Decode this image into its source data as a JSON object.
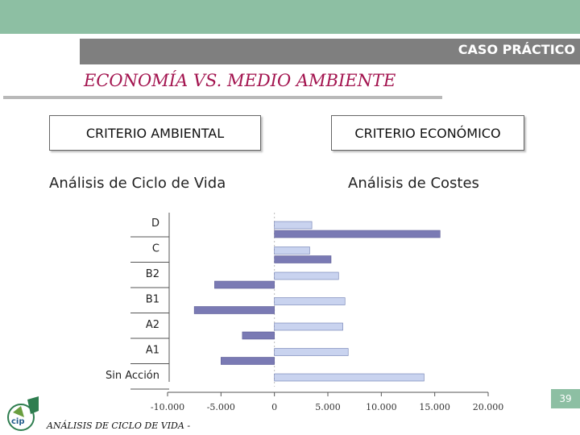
{
  "header": {
    "section": "CASO PRÁCTICO",
    "title": "ECONOMÍA VS. MEDIO AMBIENTE"
  },
  "criteria": {
    "left": {
      "label": "CRITERIO AMBIENTAL",
      "method": "Análisis de Ciclo de Vida"
    },
    "right": {
      "label": "CRITERIO ECONÓMICO",
      "method": "Análisis de Costes"
    }
  },
  "chart_data": {
    "type": "bar",
    "orientation": "horizontal",
    "categories": [
      "D",
      "C",
      "B2",
      "B1",
      "A2",
      "A1",
      "Sin Acción"
    ],
    "series": [
      {
        "values": [
          3500,
          3300,
          6000,
          6600,
          6400,
          6900,
          14000
        ],
        "color": "#c9d3ef"
      },
      {
        "values": [
          15500,
          5300,
          -5600,
          -7500,
          -3000,
          -5000,
          null
        ],
        "color": "#7a7ab4"
      }
    ],
    "xlim": [
      -10000,
      20000
    ],
    "xticks": [
      "-10.000",
      "-5.000",
      "0",
      "5.000",
      "10.000",
      "15.000",
      "20.000"
    ],
    "grid": false
  },
  "page": {
    "number": "39"
  },
  "footer": {
    "text": "ANÁLISIS DE CICLO DE VIDA -"
  },
  "colors": {
    "accent": "#8dbfa3",
    "title": "#a3144f",
    "bar_light": "#c9d3ef",
    "bar_dark": "#7a7ab4"
  }
}
